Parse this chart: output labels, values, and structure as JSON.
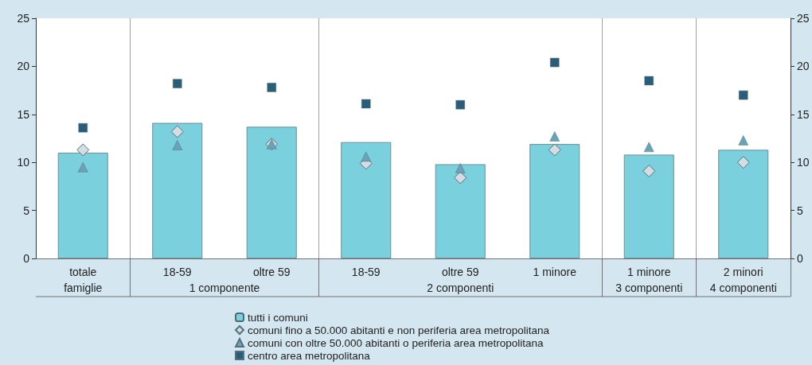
{
  "chart_data": {
    "type": "bar",
    "categories": [
      "totale",
      "18-59",
      "oltre 59",
      "18-59",
      "oltre 59",
      "1 minore",
      "1 minore",
      "2 minori"
    ],
    "annotations": [
      "famiglie",
      "1 componente",
      "2 componenti",
      "3 componenti",
      "4 componenti"
    ],
    "series": [
      {
        "name": "tutti i comuni",
        "color": "#7ad0dc",
        "values": [
          11.0,
          14.1,
          13.7,
          12.1,
          9.8,
          11.9,
          10.8,
          11.3
        ]
      },
      {
        "name": "comuni fino a 50.000 abitanti e non periferia area metropolitana",
        "type": "scatter",
        "marker": "diamond",
        "color": "#d3dde2",
        "values": [
          11.3,
          13.2,
          11.9,
          9.9,
          8.4,
          11.3,
          9.1,
          10.0
        ]
      },
      {
        "name": "comuni con oltre 50.000 abitanti o periferia area metropolitana",
        "type": "scatter",
        "marker": "triangle",
        "color": "#6aa3b8",
        "values": [
          9.5,
          11.8,
          11.9,
          10.6,
          9.4,
          12.7,
          11.6,
          12.3
        ]
      },
      {
        "name": "centro area metropolitana",
        "type": "scatter",
        "marker": "square",
        "color": "#2a5d78",
        "values": [
          13.6,
          18.2,
          17.8,
          16.1,
          16.0,
          20.4,
          18.5,
          17.0
        ]
      }
    ],
    "ylim": [
      0,
      25
    ],
    "yticks": [
      0,
      5,
      10,
      15,
      20,
      25
    ],
    "y2lim": [
      0,
      25
    ],
    "y2ticks": [
      0,
      5,
      10,
      15,
      20,
      25
    ],
    "legend": "bottom",
    "grid": false
  }
}
